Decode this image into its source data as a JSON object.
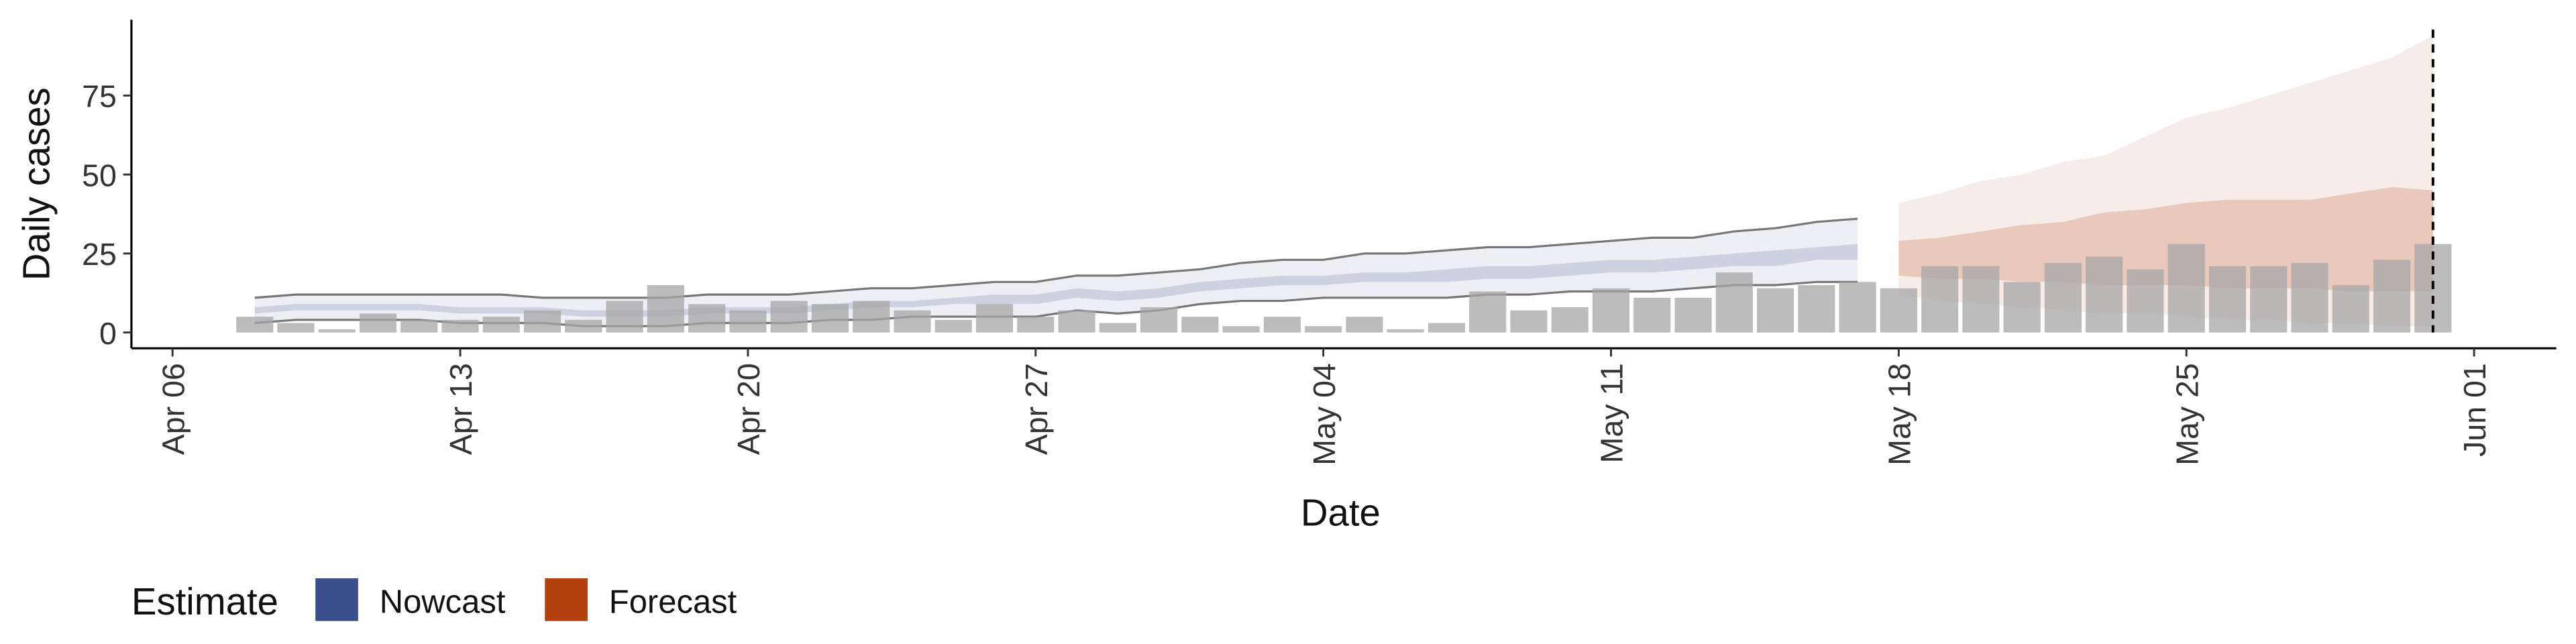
{
  "chart_data": {
    "type": "bar",
    "x_label": "Date",
    "y_label": "Daily cases",
    "legend_title": "Estimate",
    "legend_position": "bottom-left",
    "color": "#a6a6a6",
    "x": [
      "Apr 08",
      "Apr 09",
      "Apr 10",
      "Apr 11",
      "Apr 12",
      "Apr 13",
      "Apr 14",
      "Apr 15",
      "Apr 16",
      "Apr 17",
      "Apr 18",
      "Apr 19",
      "Apr 20",
      "Apr 21",
      "Apr 22",
      "Apr 23",
      "Apr 24",
      "Apr 25",
      "Apr 26",
      "Apr 27",
      "Apr 28",
      "Apr 29",
      "Apr 30",
      "May 01",
      "May 02",
      "May 03",
      "May 04",
      "May 05",
      "May 06",
      "May 07",
      "May 08",
      "May 09",
      "May 10",
      "May 11",
      "May 12",
      "May 13",
      "May 14",
      "May 15",
      "May 16",
      "May 17",
      "May 18",
      "May 19",
      "May 20",
      "May 21",
      "May 22",
      "May 23",
      "May 24",
      "May 25",
      "May 26",
      "May 27",
      "May 28",
      "May 29",
      "May 30",
      "May 31"
    ],
    "values": [
      5,
      3,
      1,
      6,
      4,
      4,
      5,
      7,
      4,
      10,
      15,
      9,
      7,
      10,
      9,
      10,
      7,
      4,
      9,
      5,
      7,
      3,
      8,
      5,
      2,
      5,
      2,
      5,
      1,
      3,
      13,
      7,
      8,
      14,
      11,
      11,
      19,
      14,
      15,
      16,
      14,
      21,
      21,
      16,
      22,
      24,
      20,
      28,
      21,
      21,
      22,
      15,
      23,
      28
    ],
    "series": [
      {
        "name": "Nowcast",
        "color": "#3a4f8c",
        "x": [
          "Apr 08",
          "Apr 09",
          "Apr 10",
          "Apr 11",
          "Apr 12",
          "Apr 13",
          "Apr 14",
          "Apr 15",
          "Apr 16",
          "Apr 17",
          "Apr 18",
          "Apr 19",
          "Apr 20",
          "Apr 21",
          "Apr 22",
          "Apr 23",
          "Apr 24",
          "Apr 25",
          "Apr 26",
          "Apr 27",
          "Apr 28",
          "Apr 29",
          "Apr 30",
          "May 01",
          "May 02",
          "May 03",
          "May 04",
          "May 05",
          "May 06",
          "May 07",
          "May 08",
          "May 09",
          "May 10",
          "May 11",
          "May 12",
          "May 13",
          "May 14",
          "May 15",
          "May 16",
          "May 17"
        ],
        "upper90": [
          11,
          12,
          12,
          12,
          12,
          12,
          12,
          11,
          11,
          11,
          11,
          12,
          12,
          12,
          13,
          14,
          14,
          15,
          16,
          16,
          18,
          18,
          19,
          20,
          22,
          23,
          23,
          25,
          25,
          26,
          27,
          27,
          28,
          29,
          30,
          30,
          32,
          33,
          35,
          36
        ],
        "lower90": [
          3,
          4,
          4,
          4,
          4,
          3,
          3,
          3,
          2,
          2,
          2,
          3,
          3,
          3,
          4,
          4,
          5,
          5,
          5,
          5,
          7,
          6,
          7,
          9,
          10,
          10,
          11,
          11,
          11,
          11,
          12,
          12,
          13,
          13,
          13,
          14,
          15,
          15,
          16,
          16
        ],
        "upper50": [
          8,
          9,
          9,
          9,
          9,
          8,
          8,
          8,
          7,
          7,
          7,
          8,
          8,
          8,
          9,
          10,
          10,
          11,
          12,
          12,
          14,
          13,
          14,
          16,
          17,
          18,
          18,
          19,
          19,
          20,
          21,
          21,
          22,
          23,
          23,
          24,
          25,
          26,
          27,
          28
        ],
        "lower50": [
          6,
          7,
          7,
          7,
          7,
          6,
          6,
          6,
          5,
          5,
          5,
          6,
          6,
          6,
          7,
          8,
          8,
          9,
          9,
          9,
          11,
          10,
          11,
          13,
          14,
          15,
          15,
          16,
          16,
          16,
          17,
          17,
          18,
          19,
          19,
          20,
          21,
          21,
          23,
          23
        ]
      },
      {
        "name": "Forecast",
        "color": "#b5400f",
        "x": [
          "May 18",
          "May 19",
          "May 20",
          "May 21",
          "May 22",
          "May 23",
          "May 24",
          "May 25",
          "May 26",
          "May 27",
          "May 28",
          "May 29",
          "May 30",
          "May 31"
        ],
        "upper90": [
          41,
          44,
          48,
          50,
          54,
          56,
          62,
          68,
          71,
          75,
          79,
          83,
          87,
          94
        ],
        "lower90": [
          12,
          10,
          9,
          8,
          7,
          6,
          6,
          5,
          4,
          4,
          3,
          3,
          2,
          2
        ],
        "upper50": [
          29,
          30,
          32,
          34,
          35,
          38,
          39,
          41,
          42,
          42,
          42,
          44,
          46,
          45
        ],
        "lower50": [
          18,
          17,
          17,
          16,
          16,
          15,
          15,
          15,
          14,
          14,
          14,
          13,
          13,
          13
        ]
      }
    ],
    "vline": "May 31",
    "xlim": [
      "Apr 05",
      "Jun 03"
    ],
    "xticks": [
      "Apr 06",
      "Apr 13",
      "Apr 20",
      "Apr 27",
      "May 04",
      "May 11",
      "May 18",
      "May 25",
      "Jun 01"
    ],
    "ylim": [
      -5,
      99
    ],
    "yticks": [
      0,
      25,
      50,
      75
    ],
    "grid": false
  }
}
